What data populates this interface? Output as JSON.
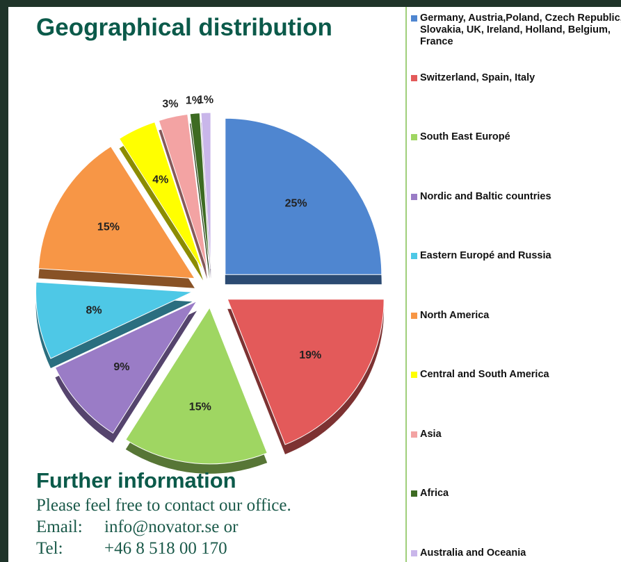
{
  "chart_data": {
    "type": "pie",
    "title": "Geographical distribution",
    "categories": [
      "Germany, Austria,Poland, Czech Republic, Slovakia, UK, Ireland, Holland, Belgium, France",
      "Switzerland, Spain, Italy",
      "South East Europé",
      "Nordic and Baltic countries",
      "Eastern Europé and Russia",
      "North America",
      "Central and South America",
      "Asia",
      "Africa",
      "Australia and Oceania"
    ],
    "values": [
      25,
      19,
      15,
      9,
      8,
      15,
      4,
      3,
      1,
      1
    ],
    "value_labels": [
      "25%",
      "19%",
      "15%",
      "9%",
      "8%",
      "15%",
      "4%",
      "3%",
      "1%",
      "1%"
    ],
    "colors": [
      "#4f86d0",
      "#e35a5a",
      "#9fd662",
      "#9a7cc6",
      "#4ec8e6",
      "#f79646",
      "#ffff00",
      "#f3a3a3",
      "#3d6b22",
      "#c9b6ea"
    ],
    "legend": "right"
  },
  "info": {
    "title": "Further information",
    "intro": "Please feel free to contact our office.",
    "rows": [
      [
        "Email:",
        "info@novator.se or"
      ],
      [
        "Tel:",
        "+46 8 518 00 170"
      ]
    ]
  }
}
